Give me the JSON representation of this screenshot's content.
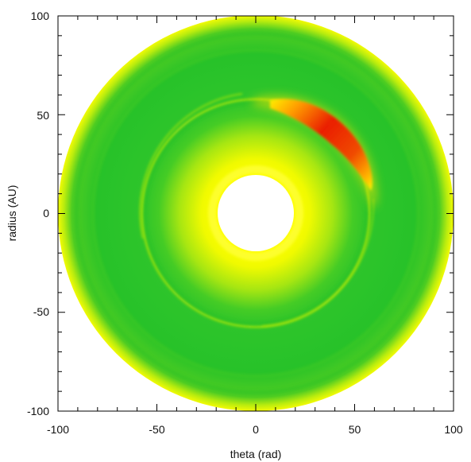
{
  "chart_data": {
    "type": "heatmap",
    "title": "",
    "xlabel": "theta (rad)",
    "ylabel": "radius (AU)",
    "xlim": [
      -100,
      100
    ],
    "ylim": [
      -100,
      100
    ],
    "xticks": [
      -100,
      -50,
      0,
      50,
      100
    ],
    "yticks": [
      100,
      50,
      0,
      -50,
      -100
    ],
    "grid": false,
    "legend": "none",
    "colormap": [
      "#ffffff",
      "#ffff00",
      "#21c421",
      "#ff8c00",
      "#e60000"
    ],
    "features": [
      {
        "name": "inner-hole",
        "outer_radius": 19
      },
      {
        "name": "inner-disk",
        "inner_radius": 19,
        "outer_radius": 57
      },
      {
        "name": "gap-ring",
        "radius": 57
      },
      {
        "name": "outer-disk",
        "inner_radius": 57,
        "outer_radius": 100
      },
      {
        "name": "vortex",
        "radius": 53,
        "angle_start_deg": 18,
        "angle_end_deg": 78,
        "peak_angle_deg": 48
      }
    ]
  },
  "colors": {
    "disk_green": "#21c421",
    "disk_yellow": "#ffff00",
    "hot": "#e60000",
    "warm": "#ff8c00",
    "axis": "#000000"
  }
}
